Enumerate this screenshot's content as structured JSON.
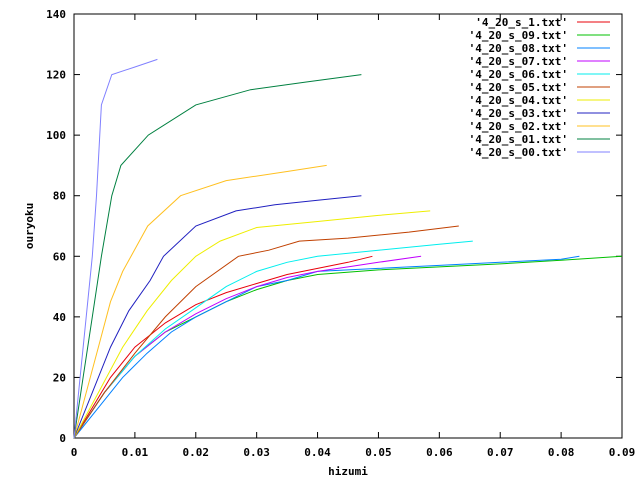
{
  "chart_data": {
    "type": "line",
    "title": "",
    "xlabel": "hizumi",
    "ylabel": "ouryoku",
    "xlim": [
      0,
      0.09
    ],
    "ylim": [
      0,
      140
    ],
    "xticks": [
      0,
      0.01,
      0.02,
      0.03,
      0.04,
      0.05,
      0.06,
      0.07,
      0.08,
      0.09
    ],
    "xtick_labels": [
      "0",
      "0.01",
      "0.02",
      "0.03",
      "0.04",
      "0.05",
      "0.06",
      "0.07",
      "0.08",
      "0.09"
    ],
    "yticks": [
      0,
      20,
      40,
      60,
      80,
      100,
      120,
      140
    ],
    "ytick_labels": [
      "0",
      "20",
      "40",
      "60",
      "80",
      "100",
      "120",
      "140"
    ],
    "grid": false,
    "legend_position": "top-right",
    "series": [
      {
        "name": "'4_20_s_1.txt'",
        "color": "#e8000a",
        "x": [
          0,
          0.003,
          0.006,
          0.01,
          0.015,
          0.02,
          0.025,
          0.03,
          0.035,
          0.04,
          0.045,
          0.049
        ],
        "y": [
          0,
          10,
          20,
          30,
          38,
          44,
          48,
          51,
          54,
          56,
          58,
          60
        ]
      },
      {
        "name": "'4_20_s_09.txt'",
        "color": "#00c000",
        "x": [
          0,
          0.005,
          0.01,
          0.015,
          0.02,
          0.025,
          0.03,
          0.035,
          0.04,
          0.05,
          0.06,
          0.07,
          0.08,
          0.09
        ],
        "y": [
          0,
          15,
          27,
          35,
          40,
          45,
          49,
          52,
          54,
          55.5,
          56.5,
          57.5,
          58.7,
          60
        ]
      },
      {
        "name": "'4_20_s_08.txt'",
        "color": "#0080ff",
        "x": [
          0,
          0.004,
          0.008,
          0.012,
          0.016,
          0.02,
          0.025,
          0.03,
          0.035,
          0.04,
          0.05,
          0.06,
          0.07,
          0.08,
          0.083
        ],
        "y": [
          0,
          10,
          20,
          28,
          35,
          40,
          45,
          50,
          52,
          55,
          56,
          57,
          58,
          59,
          60
        ]
      },
      {
        "name": "'4_20_s_07.txt'",
        "color": "#c000ff",
        "x": [
          0,
          0.005,
          0.01,
          0.015,
          0.02,
          0.025,
          0.03,
          0.035,
          0.04,
          0.045,
          0.05,
          0.057
        ],
        "y": [
          0,
          15,
          27,
          35,
          41,
          46,
          50,
          53,
          55,
          56.5,
          58,
          60
        ]
      },
      {
        "name": "'4_20_s_06.txt'",
        "color": "#00eeee",
        "x": [
          0,
          0.005,
          0.01,
          0.015,
          0.02,
          0.025,
          0.03,
          0.035,
          0.04,
          0.05,
          0.06,
          0.0655
        ],
        "y": [
          0,
          15,
          27,
          36,
          43,
          50,
          55,
          58,
          60,
          62,
          64,
          65
        ]
      },
      {
        "name": "'4_20_s_05.txt'",
        "color": "#c04000",
        "x": [
          0,
          0.005,
          0.01,
          0.015,
          0.02,
          0.027,
          0.032,
          0.037,
          0.045,
          0.055,
          0.0632
        ],
        "y": [
          0,
          15,
          28,
          40,
          50,
          60,
          62,
          65,
          66,
          68,
          70
        ]
      },
      {
        "name": "'4_20_s_04.txt'",
        "color": "#eeee00",
        "x": [
          0,
          0.004,
          0.008,
          0.012,
          0.016,
          0.02,
          0.024,
          0.03,
          0.04,
          0.05,
          0.0585
        ],
        "y": [
          0,
          15,
          30,
          42,
          52,
          60,
          65,
          69.5,
          71.5,
          73.5,
          75
        ]
      },
      {
        "name": "'4_20_s_03.txt'",
        "color": "#2020c0",
        "x": [
          0,
          0.003,
          0.006,
          0.009,
          0.0125,
          0.0147,
          0.02,
          0.0266,
          0.033,
          0.04,
          0.0472
        ],
        "y": [
          0,
          15,
          30,
          42,
          52,
          60,
          70,
          75,
          77,
          78.5,
          80
        ]
      },
      {
        "name": "'4_20_s_02.txt'",
        "color": "#ffc020",
        "x": [
          0,
          0.002,
          0.004,
          0.006,
          0.008,
          0.0121,
          0.0175,
          0.025,
          0.035,
          0.0415
        ],
        "y": [
          0,
          15,
          30,
          45,
          55,
          70,
          80,
          85,
          88,
          90
        ]
      },
      {
        "name": "'4_20_s_01.txt'",
        "color": "#008040",
        "x": [
          0,
          0.0015,
          0.003,
          0.0045,
          0.0062,
          0.0077,
          0.0122,
          0.02,
          0.029,
          0.038,
          0.0472
        ],
        "y": [
          0,
          20,
          40,
          60,
          80,
          90,
          100,
          110,
          115,
          117.5,
          120
        ]
      },
      {
        "name": "'4_20_s_00.txt'",
        "color": "#8080ff",
        "x": [
          0,
          0.001,
          0.002,
          0.003,
          0.0037,
          0.0045,
          0.0062,
          0.01,
          0.0137
        ],
        "y": [
          0,
          20,
          40,
          60,
          80,
          110,
          120,
          122.5,
          125
        ]
      }
    ]
  }
}
